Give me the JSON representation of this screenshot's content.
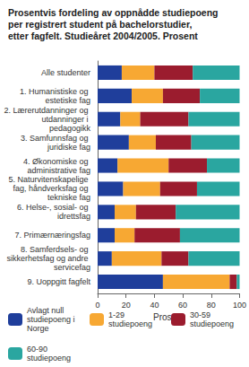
{
  "chart_data": {
    "type": "bar",
    "title": "Prosentvis fordeling av oppnådde studiepoeng per registrert student på bachelorstudier, etter fagfelt. Studieåret 2004/2005. Prosent",
    "x_label": "Prosent",
    "orientation": "horizontal",
    "stacked": true,
    "grid": false,
    "legend": "bottom",
    "categories": [
      "Alle studenter",
      "1. Humanistiske og estetiske fag",
      "2. Lærerutdanninger og utdanninger i pedagogikk",
      "3. Samfunnsfag og juridiske fag",
      "4. Økonomiske og administrative fag",
      "5. Naturvitenskapelige fag, håndverksfag og tekniske fag",
      "6. Helse-, sosial- og idrettsfag",
      "7. Primærnæringsfag",
      "8. Samferdsels- og sikkerhetsfag og andre servicefag",
      "9. Uoppgitt fagfelt"
    ],
    "series": [
      {
        "name": "Avlagt null studiepoeng i Norge",
        "color": "#1f3e9b",
        "values": [
          17,
          24,
          16,
          22,
          14,
          18,
          12,
          12,
          10,
          46
        ]
      },
      {
        "name": "1-29 studiepoeng",
        "color": "#f7a833",
        "values": [
          23,
          22,
          14,
          19,
          36,
          26,
          15,
          14,
          35,
          47
        ]
      },
      {
        "name": "30-59 studiepoeng",
        "color": "#9b1c2e",
        "values": [
          27,
          26,
          34,
          25,
          27,
          26,
          28,
          32,
          19,
          5
        ]
      },
      {
        "name": "60-90 studiepoeng",
        "color": "#2aa6a0",
        "values": [
          33,
          28,
          36,
          34,
          23,
          30,
          45,
          42,
          36,
          2
        ]
      }
    ],
    "xlim": [
      0,
      100
    ],
    "xticks": [
      0,
      20,
      40,
      60,
      80,
      100
    ]
  }
}
